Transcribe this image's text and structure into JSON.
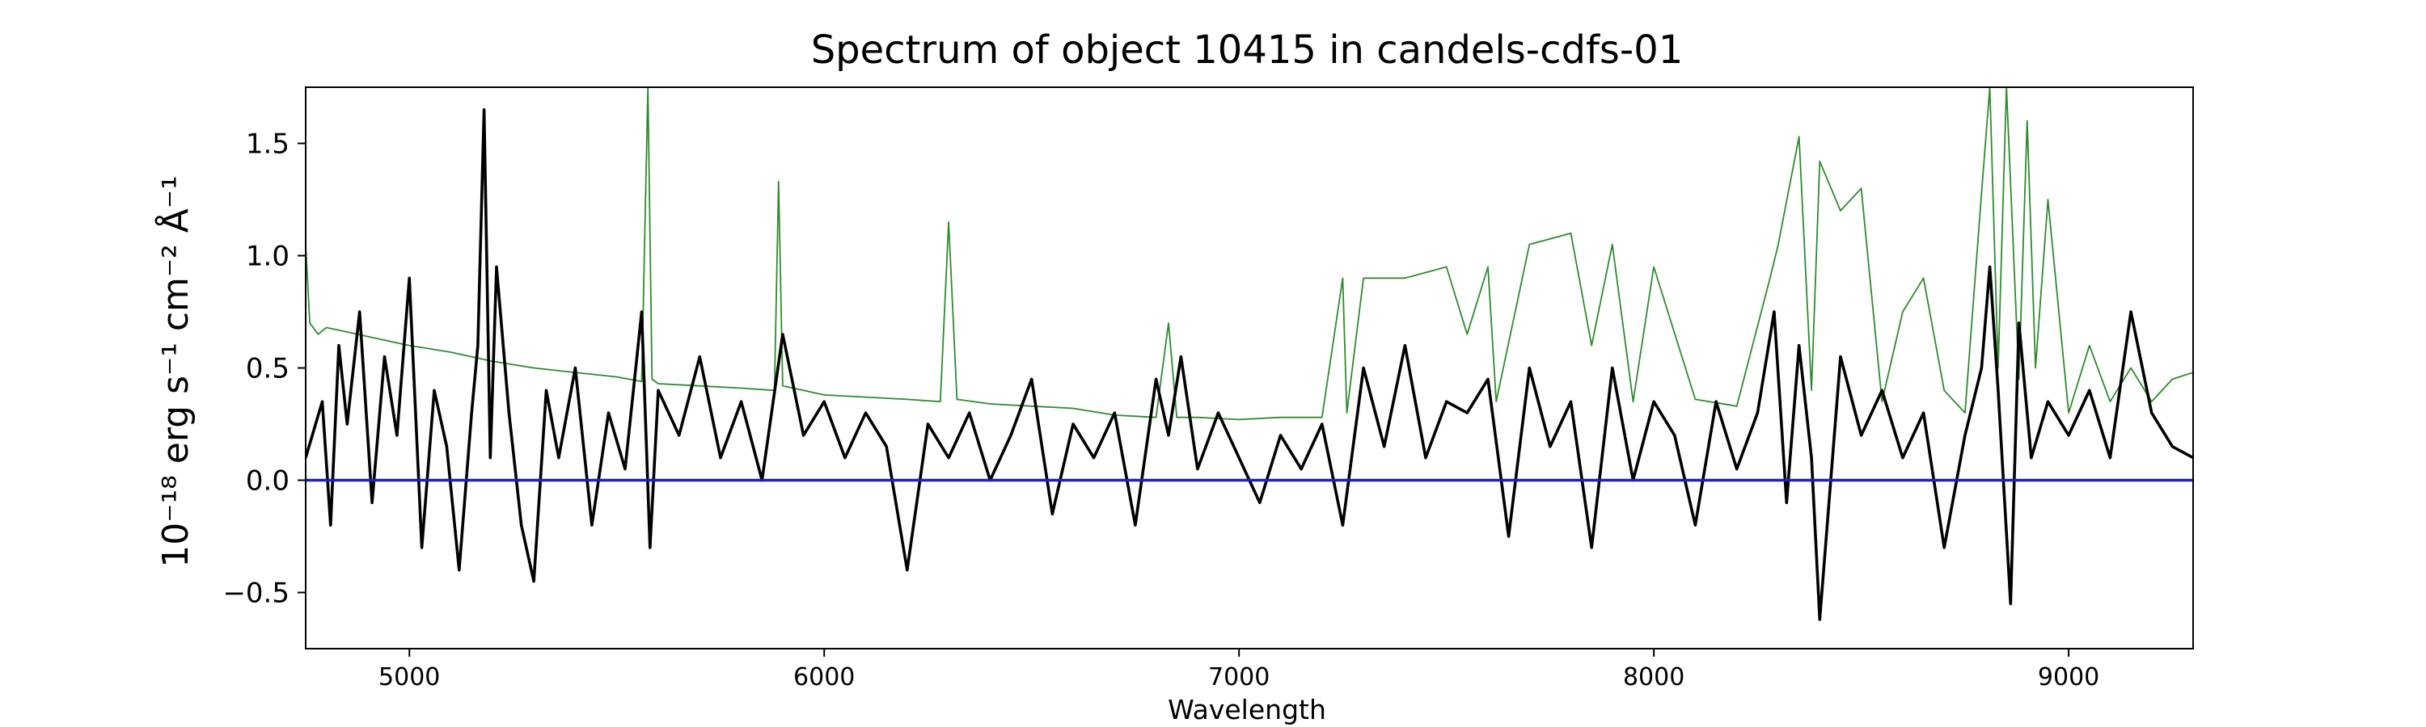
{
  "chart_data": {
    "type": "line",
    "title": "Spectrum of object 10415 in candels-cdfs-01",
    "xlabel": "Wavelength",
    "ylabel": "10⁻¹⁸ erg s⁻¹ cm⁻² Å⁻¹",
    "xlim": [
      4750,
      9300
    ],
    "ylim": [
      -0.75,
      1.75
    ],
    "x_ticks": [
      5000,
      6000,
      7000,
      8000,
      9000
    ],
    "x_tick_labels": [
      "5000",
      "6000",
      "7000",
      "8000",
      "9000"
    ],
    "y_ticks": [
      -0.5,
      0.0,
      0.5,
      1.0,
      1.5
    ],
    "y_tick_labels": [
      "−0.5",
      "0.0",
      "0.5",
      "1.0",
      "1.5"
    ],
    "grid": false,
    "legend": "none",
    "colors": {
      "flux": "#000000",
      "error": "#2e8b2e",
      "zero": "#1f22b4"
    },
    "series": [
      {
        "role": "flux",
        "x": [
          4750,
          4790,
          4810,
          4830,
          4850,
          4880,
          4910,
          4940,
          4970,
          5000,
          5030,
          5060,
          5090,
          5120,
          5150,
          5165,
          5180,
          5195,
          5210,
          5240,
          5270,
          5300,
          5330,
          5360,
          5400,
          5440,
          5480,
          5520,
          5560,
          5580,
          5600,
          5650,
          5700,
          5750,
          5800,
          5850,
          5900,
          5950,
          6000,
          6050,
          6100,
          6150,
          6200,
          6250,
          6300,
          6350,
          6400,
          6450,
          6500,
          6550,
          6600,
          6650,
          6700,
          6750,
          6800,
          6830,
          6860,
          6900,
          6950,
          7000,
          7050,
          7100,
          7150,
          7200,
          7250,
          7300,
          7350,
          7400,
          7450,
          7500,
          7550,
          7600,
          7650,
          7700,
          7750,
          7800,
          7850,
          7900,
          7950,
          8000,
          8050,
          8100,
          8150,
          8200,
          8250,
          8290,
          8320,
          8350,
          8380,
          8400,
          8450,
          8500,
          8550,
          8600,
          8650,
          8700,
          8750,
          8790,
          8810,
          8830,
          8860,
          8880,
          8910,
          8950,
          9000,
          9050,
          9100,
          9150,
          9200,
          9250,
          9300
        ],
        "y": [
          0.1,
          0.35,
          -0.2,
          0.6,
          0.25,
          0.75,
          -0.1,
          0.55,
          0.2,
          0.9,
          -0.3,
          0.4,
          0.15,
          -0.4,
          0.3,
          0.6,
          1.65,
          0.1,
          0.95,
          0.3,
          -0.2,
          -0.45,
          0.4,
          0.1,
          0.5,
          -0.2,
          0.3,
          0.05,
          0.75,
          -0.3,
          0.4,
          0.2,
          0.55,
          0.1,
          0.35,
          0.0,
          0.65,
          0.2,
          0.35,
          0.1,
          0.3,
          0.15,
          -0.4,
          0.25,
          0.1,
          0.3,
          0.0,
          0.2,
          0.45,
          -0.15,
          0.25,
          0.1,
          0.3,
          -0.2,
          0.45,
          0.2,
          0.55,
          0.05,
          0.3,
          0.1,
          -0.1,
          0.2,
          0.05,
          0.25,
          -0.2,
          0.5,
          0.15,
          0.6,
          0.1,
          0.35,
          0.3,
          0.45,
          -0.25,
          0.5,
          0.15,
          0.35,
          -0.3,
          0.5,
          0.0,
          0.35,
          0.2,
          -0.2,
          0.35,
          0.05,
          0.3,
          0.75,
          -0.1,
          0.6,
          0.1,
          -0.62,
          0.55,
          0.2,
          0.4,
          0.1,
          0.3,
          -0.3,
          0.2,
          0.5,
          0.95,
          0.4,
          -0.55,
          0.7,
          0.1,
          0.35,
          0.2,
          0.4,
          0.1,
          0.75,
          0.3,
          0.15,
          0.1
        ]
      },
      {
        "role": "error",
        "x": [
          4750,
          4760,
          4780,
          4800,
          4850,
          4900,
          5000,
          5100,
          5200,
          5300,
          5400,
          5500,
          5560,
          5575,
          5585,
          5600,
          5700,
          5800,
          5880,
          5890,
          5900,
          5950,
          6000,
          6100,
          6200,
          6280,
          6300,
          6320,
          6400,
          6500,
          6600,
          6700,
          6800,
          6830,
          6850,
          6900,
          7000,
          7100,
          7200,
          7250,
          7260,
          7300,
          7400,
          7500,
          7550,
          7600,
          7620,
          7700,
          7800,
          7850,
          7900,
          7950,
          8000,
          8100,
          8200,
          8280,
          8300,
          8350,
          8380,
          8400,
          8450,
          8500,
          8550,
          8600,
          8650,
          8700,
          8750,
          8790,
          8810,
          8830,
          8850,
          8880,
          8900,
          8920,
          8950,
          9000,
          9050,
          9100,
          9150,
          9200,
          9250,
          9300
        ],
        "y": [
          1.05,
          0.7,
          0.65,
          0.68,
          0.66,
          0.64,
          0.6,
          0.57,
          0.53,
          0.5,
          0.48,
          0.46,
          0.44,
          1.75,
          0.45,
          0.43,
          0.42,
          0.41,
          0.4,
          1.33,
          0.42,
          0.4,
          0.38,
          0.37,
          0.36,
          0.35,
          1.15,
          0.36,
          0.34,
          0.33,
          0.32,
          0.29,
          0.28,
          0.7,
          0.28,
          0.28,
          0.27,
          0.28,
          0.28,
          0.9,
          0.3,
          0.9,
          0.9,
          0.95,
          0.65,
          0.95,
          0.35,
          1.05,
          1.1,
          0.6,
          1.05,
          0.35,
          0.95,
          0.36,
          0.33,
          0.9,
          1.05,
          1.53,
          0.4,
          1.42,
          1.2,
          1.3,
          0.35,
          0.75,
          0.9,
          0.4,
          0.3,
          1.28,
          1.75,
          0.5,
          1.75,
          0.45,
          1.6,
          0.5,
          1.25,
          0.3,
          0.6,
          0.35,
          0.5,
          0.35,
          0.45,
          0.48
        ]
      },
      {
        "role": "zero",
        "x": [
          4750,
          9300
        ],
        "y": [
          0.0,
          0.0
        ]
      }
    ]
  }
}
